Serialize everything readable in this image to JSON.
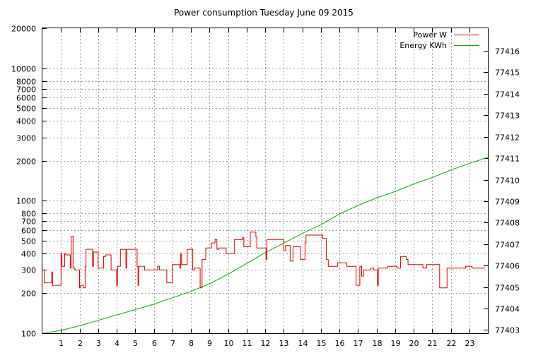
{
  "chart_data": {
    "type": "line",
    "title": "Power consumption Tuesday June 09 2015",
    "xlim": [
      0,
      24
    ],
    "x_ticks": [
      "1",
      "2",
      "3",
      "4",
      "5",
      "6",
      "7",
      "8",
      "9",
      "10",
      "11",
      "12",
      "13",
      "14",
      "15",
      "16",
      "17",
      "18",
      "19",
      "20",
      "21",
      "22",
      "23"
    ],
    "y_left": {
      "scale": "log",
      "ylim": [
        100,
        20000
      ],
      "ticks": [
        100,
        200,
        300,
        400,
        500,
        600,
        700,
        800,
        1000,
        2000,
        3000,
        4000,
        5000,
        6000,
        7000,
        8000,
        10000,
        20000
      ],
      "tick_labels": [
        "100",
        "200",
        "300",
        "400",
        "500",
        "600",
        "700",
        "800",
        "1000",
        "2000",
        "3000",
        "4000",
        "5000",
        "6000",
        "7000",
        "8000",
        "10000",
        "20000"
      ]
    },
    "y_right": {
      "scale": "log-linked",
      "ticks": [
        77403,
        77404,
        77405,
        77406,
        77407,
        77408,
        77409,
        77410,
        77411,
        77412,
        77413,
        77414,
        77415,
        77416
      ],
      "tick_labels": [
        "77403",
        "77404",
        "77405",
        "77406",
        "77407",
        "77408",
        "77409",
        "77410",
        "77411",
        "77412",
        "77413",
        "77414",
        "77415",
        "77416"
      ]
    },
    "grid": true,
    "legend": "top-right",
    "series": [
      {
        "name": "Power W",
        "color": "#e00000",
        "axis": "left",
        "x": [
          0,
          0.1,
          0.1,
          0.5,
          0.5,
          0.55,
          0.55,
          0.9,
          0.9,
          1.0,
          1.0,
          1.05,
          1.05,
          1.2,
          1.2,
          1.25,
          1.25,
          1.5,
          1.5,
          1.55,
          1.55,
          1.65,
          1.65,
          1.75,
          1.75,
          2.0,
          2.0,
          2.05,
          2.05,
          2.2,
          2.2,
          2.3,
          2.3,
          2.35,
          2.35,
          2.7,
          2.7,
          2.75,
          2.75,
          3.0,
          3.0,
          3.3,
          3.3,
          3.4,
          3.4,
          3.7,
          3.7,
          4.0,
          4.0,
          4.05,
          4.05,
          4.2,
          4.2,
          4.5,
          4.5,
          4.55,
          4.55,
          5.1,
          5.1,
          5.15,
          5.15,
          5.2,
          5.2,
          5.5,
          5.5,
          6.2,
          6.2,
          6.3,
          6.3,
          6.7,
          6.7,
          7.0,
          7.0,
          7.4,
          7.4,
          7.45,
          7.45,
          7.5,
          7.5,
          7.8,
          7.8,
          8.1,
          8.1,
          8.2,
          8.2,
          8.5,
          8.5,
          8.6,
          8.6,
          8.8,
          8.8,
          9.1,
          9.1,
          9.3,
          9.3,
          9.4,
          9.4,
          9.5,
          9.5,
          9.9,
          9.9,
          10.35,
          10.35,
          10.8,
          10.8,
          10.85,
          10.85,
          11.2,
          11.2,
          11.5,
          11.5,
          11.55,
          11.55,
          12.05,
          12.05,
          12.1,
          12.1,
          13.0,
          13.0,
          13.1,
          13.1,
          13.35,
          13.35,
          13.5,
          13.5,
          13.9,
          13.9,
          14.15,
          14.15,
          14.2,
          14.2,
          15.1,
          15.1,
          15.3,
          15.3,
          15.4,
          15.4,
          15.9,
          15.9,
          16.4,
          16.4,
          16.9,
          16.9,
          17.1,
          17.1,
          17.2,
          17.2,
          17.3,
          17.3,
          17.7,
          17.7,
          17.85,
          17.85,
          18.05,
          18.05,
          18.1,
          18.1,
          18.6,
          18.6,
          19.1,
          19.1,
          19.3,
          19.3,
          19.6,
          19.6,
          19.7,
          19.7,
          20.5,
          20.5,
          20.7,
          20.7,
          21.4,
          21.4,
          21.8,
          21.8,
          22.8,
          22.8,
          23.15,
          23.15,
          23.5,
          23.5,
          23.85
        ],
        "y": [
          300,
          300,
          240,
          240,
          290,
          290,
          230,
          230,
          230,
          230,
          400,
          400,
          320,
          320,
          400,
          400,
          390,
          390,
          310,
          310,
          540,
          540,
          310,
          310,
          300,
          300,
          220,
          220,
          230,
          230,
          220,
          220,
          320,
          320,
          430,
          430,
          320,
          320,
          410,
          410,
          310,
          310,
          380,
          380,
          390,
          390,
          300,
          300,
          230,
          230,
          320,
          320,
          430,
          430,
          310,
          310,
          430,
          430,
          320,
          320,
          230,
          230,
          320,
          320,
          300,
          300,
          320,
          320,
          300,
          300,
          240,
          240,
          330,
          330,
          310,
          310,
          400,
          400,
          330,
          330,
          430,
          430,
          300,
          300,
          310,
          310,
          220,
          220,
          360,
          360,
          440,
          440,
          480,
          480,
          510,
          510,
          430,
          430,
          440,
          440,
          400,
          400,
          510,
          510,
          530,
          530,
          450,
          450,
          580,
          580,
          530,
          530,
          440,
          440,
          360,
          360,
          510,
          510,
          420,
          420,
          460,
          460,
          350,
          350,
          450,
          450,
          360,
          360,
          480,
          480,
          550,
          550,
          520,
          520,
          360,
          360,
          320,
          320,
          340,
          340,
          320,
          320,
          230,
          230,
          320,
          320,
          270,
          270,
          300,
          300,
          310,
          310,
          300,
          300,
          230,
          230,
          310,
          310,
          320,
          320,
          310,
          310,
          380,
          380,
          360,
          360,
          330,
          330,
          310,
          310,
          330,
          330,
          220,
          220,
          310,
          310,
          320,
          320,
          310,
          310,
          310,
          310
        ]
      },
      {
        "name": "Energy KWh",
        "color": "#00b000",
        "axis": "right",
        "x": [
          0,
          1,
          2,
          3,
          4,
          5,
          6,
          7,
          8,
          9,
          10,
          11,
          12,
          13,
          14,
          15,
          16,
          17,
          18,
          19,
          20,
          21,
          22,
          23,
          24
        ],
        "y": [
          77402.85,
          77402.98,
          77403.2,
          77403.45,
          77403.7,
          77403.95,
          77404.2,
          77404.5,
          77404.8,
          77405.15,
          77405.6,
          77406.1,
          77406.6,
          77407.05,
          77407.5,
          77407.9,
          77408.4,
          77408.8,
          77409.15,
          77409.45,
          77409.8,
          77410.1,
          77410.45,
          77410.75,
          77411.05
        ]
      }
    ]
  }
}
